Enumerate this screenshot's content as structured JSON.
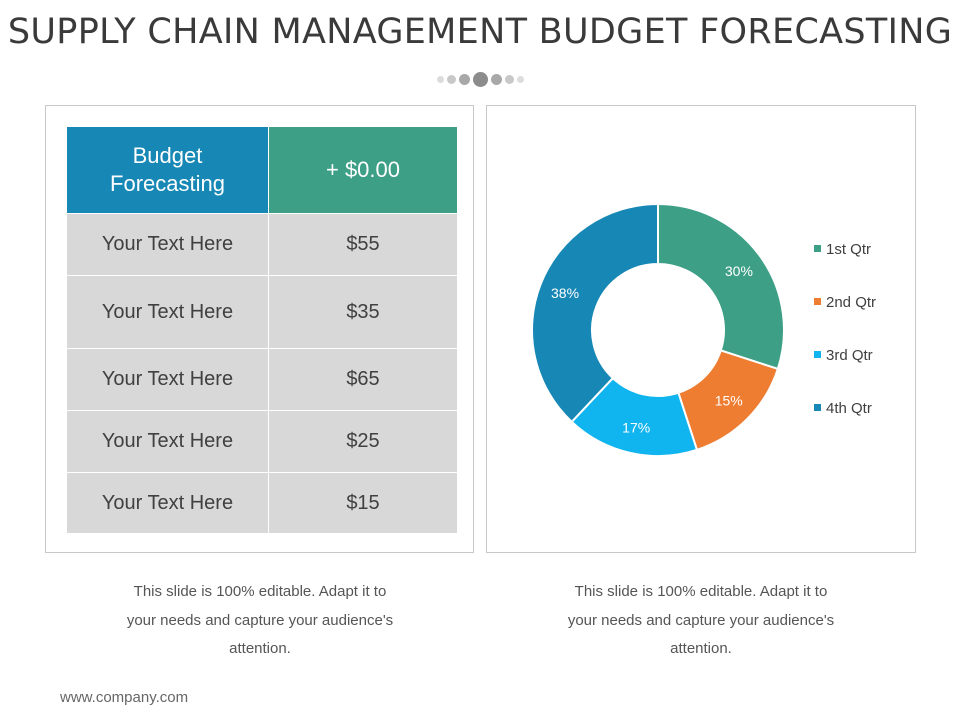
{
  "title": "SUPPLY CHAIN MANAGEMENT BUDGET FORECASTING",
  "table": {
    "header_label_line1": "Budget",
    "header_label_line2": "Forecasting",
    "header_value": "+ $0.00",
    "rows": [
      {
        "label": "Your Text Here",
        "value": "$55"
      },
      {
        "label": "Your Text Here",
        "value": "$35"
      },
      {
        "label": "Your Text Here",
        "value": "$65"
      },
      {
        "label": "Your Text Here",
        "value": "$25"
      },
      {
        "label": "Your Text Here",
        "value": "$15"
      }
    ]
  },
  "chart_data": {
    "type": "pie",
    "style": "donut",
    "categories": [
      "1st Qtr",
      "2nd Qtr",
      "3rd Qtr",
      "4th Qtr"
    ],
    "values": [
      30,
      15,
      17,
      38
    ],
    "data_labels": [
      "30%",
      "15%",
      "17%",
      "38%"
    ],
    "colors": [
      "#3e9f87",
      "#ee7d31",
      "#10b4ee",
      "#1787b5"
    ],
    "legend_position": "right"
  },
  "captions": {
    "left": {
      "line1": "This slide is 100% editable. Adapt it to",
      "line2": "your needs and capture your audience's",
      "line3": "attention."
    },
    "right": {
      "line1": "This slide is 100% editable. Adapt it to",
      "line2": "your needs and capture your audience's",
      "line3": "attention."
    }
  },
  "footer": "www.company.com"
}
